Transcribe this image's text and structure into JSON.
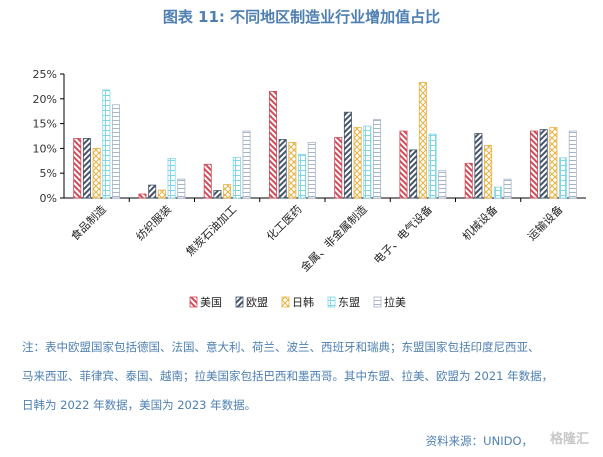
{
  "title": "图表 11: 不同地区制造业行业增加值占比",
  "notes": [
    "注：表中欧盟国家包括德国、法国、意大利、荷兰、波兰、西班牙和瑞典；东盟国家包括印度尼西亚、",
    "马来西亚、菲律宾、泰国、越南；拉美国家包括巴西和墨西哥。其中东盟、拉美、欧盟为 2021 年数据，",
    "日韩为 2022 年数据，美国为 2023 年数据。"
  ],
  "source": "资料来源：UNIDO，",
  "watermark": "格隆汇",
  "colors": {
    "us": "#d04c58",
    "eu": "#44546a",
    "jpkr": "#e8b040",
    "asean": "#7fd6e6",
    "latam": "#a8b4c8",
    "axis": "#000000"
  },
  "chart_data": {
    "type": "bar",
    "title": "图表 11: 不同地区制造业行业增加值占比",
    "xlabel": "",
    "ylabel": "",
    "ylim": [
      0,
      25
    ],
    "yticks": [
      "0%",
      "5%",
      "10%",
      "15%",
      "20%",
      "25%"
    ],
    "grid": false,
    "legend_position": "bottom",
    "categories": [
      "食品制造",
      "纺织服装",
      "焦炭石油加工",
      "化工医药",
      "金属、非金属制造",
      "电子、电气设备",
      "机械设备",
      "运输设备"
    ],
    "series": [
      {
        "name": "美国",
        "values": [
          12,
          0.8,
          6.8,
          21.5,
          12.2,
          13.5,
          7,
          13.5
        ]
      },
      {
        "name": "欧盟",
        "values": [
          12,
          2.6,
          1.5,
          11.8,
          17.3,
          9.7,
          13,
          13.8
        ]
      },
      {
        "name": "日韩",
        "values": [
          10,
          1.6,
          2.7,
          11.2,
          14.2,
          23.3,
          10.6,
          14.2
        ]
      },
      {
        "name": "东盟",
        "values": [
          21.8,
          8,
          8.2,
          8.8,
          14.5,
          12.9,
          2.2,
          8.1
        ]
      },
      {
        "name": "拉美",
        "values": [
          18.8,
          3.8,
          13.5,
          11.2,
          15.8,
          5.5,
          3.8,
          13.5
        ]
      }
    ]
  }
}
